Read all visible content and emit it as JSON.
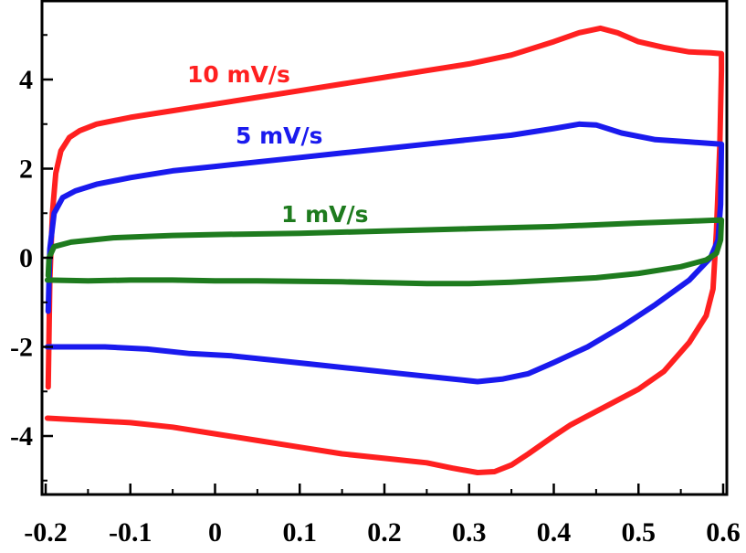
{
  "chart_data": {
    "type": "line",
    "title": "",
    "xlabel": "",
    "ylabel": "",
    "xlim": [
      -0.2,
      0.6
    ],
    "ylim": [
      -5.5,
      5.8
    ],
    "x_ticks": [
      "-0.2",
      "-0.1",
      "0",
      "0.1",
      "0.2",
      "0.3",
      "0.4",
      "0.5",
      "0.6"
    ],
    "x_tick_values": [
      -0.2,
      -0.1,
      0,
      0.1,
      0.2,
      0.3,
      0.4,
      0.5,
      0.6
    ],
    "y_ticks": [
      "4",
      "2",
      "0",
      "-2",
      "-4"
    ],
    "y_tick_values": [
      4,
      2,
      0,
      -2,
      -4
    ],
    "grid": false,
    "series": [
      {
        "name": "10 mV/s",
        "color": "#ff2020",
        "points": [
          [
            -0.197,
            -2.9
          ],
          [
            -0.195,
            -0.5
          ],
          [
            -0.192,
            1.0
          ],
          [
            -0.188,
            1.9
          ],
          [
            -0.182,
            2.4
          ],
          [
            -0.172,
            2.7
          ],
          [
            -0.16,
            2.85
          ],
          [
            -0.14,
            3.0
          ],
          [
            -0.1,
            3.15
          ],
          [
            -0.05,
            3.3
          ],
          [
            0.0,
            3.45
          ],
          [
            0.05,
            3.6
          ],
          [
            0.1,
            3.75
          ],
          [
            0.15,
            3.9
          ],
          [
            0.2,
            4.05
          ],
          [
            0.25,
            4.2
          ],
          [
            0.3,
            4.35
          ],
          [
            0.35,
            4.55
          ],
          [
            0.4,
            4.85
          ],
          [
            0.43,
            5.05
          ],
          [
            0.455,
            5.15
          ],
          [
            0.475,
            5.05
          ],
          [
            0.5,
            4.85
          ],
          [
            0.53,
            4.72
          ],
          [
            0.56,
            4.62
          ],
          [
            0.585,
            4.6
          ],
          [
            0.598,
            4.58
          ],
          [
            0.598,
            4.2
          ],
          [
            0.596,
            2.5
          ],
          [
            0.592,
            0.6
          ],
          [
            0.588,
            -0.7
          ],
          [
            0.58,
            -1.3
          ],
          [
            0.56,
            -1.9
          ],
          [
            0.53,
            -2.55
          ],
          [
            0.5,
            -2.95
          ],
          [
            0.46,
            -3.35
          ],
          [
            0.42,
            -3.75
          ],
          [
            0.4,
            -4.0
          ],
          [
            0.37,
            -4.4
          ],
          [
            0.35,
            -4.65
          ],
          [
            0.33,
            -4.8
          ],
          [
            0.31,
            -4.82
          ],
          [
            0.28,
            -4.72
          ],
          [
            0.25,
            -4.6
          ],
          [
            0.2,
            -4.5
          ],
          [
            0.15,
            -4.4
          ],
          [
            0.1,
            -4.25
          ],
          [
            0.05,
            -4.1
          ],
          [
            0.0,
            -3.95
          ],
          [
            -0.05,
            -3.8
          ],
          [
            -0.1,
            -3.7
          ],
          [
            -0.15,
            -3.65
          ],
          [
            -0.198,
            -3.6
          ]
        ]
      },
      {
        "name": "5 mV/s",
        "color": "#1a1aee",
        "points": [
          [
            -0.197,
            -1.2
          ],
          [
            -0.195,
            0.2
          ],
          [
            -0.19,
            1.0
          ],
          [
            -0.18,
            1.35
          ],
          [
            -0.165,
            1.5
          ],
          [
            -0.14,
            1.65
          ],
          [
            -0.1,
            1.8
          ],
          [
            -0.05,
            1.95
          ],
          [
            0.0,
            2.05
          ],
          [
            0.05,
            2.15
          ],
          [
            0.1,
            2.25
          ],
          [
            0.15,
            2.35
          ],
          [
            0.2,
            2.45
          ],
          [
            0.25,
            2.55
          ],
          [
            0.3,
            2.65
          ],
          [
            0.35,
            2.75
          ],
          [
            0.4,
            2.9
          ],
          [
            0.43,
            3.0
          ],
          [
            0.45,
            2.98
          ],
          [
            0.48,
            2.8
          ],
          [
            0.52,
            2.65
          ],
          [
            0.56,
            2.6
          ],
          [
            0.598,
            2.55
          ],
          [
            0.597,
            1.2
          ],
          [
            0.594,
            0.4
          ],
          [
            0.585,
            0.0
          ],
          [
            0.56,
            -0.5
          ],
          [
            0.52,
            -1.05
          ],
          [
            0.48,
            -1.55
          ],
          [
            0.44,
            -2.0
          ],
          [
            0.4,
            -2.35
          ],
          [
            0.37,
            -2.6
          ],
          [
            0.34,
            -2.72
          ],
          [
            0.31,
            -2.78
          ],
          [
            0.27,
            -2.7
          ],
          [
            0.22,
            -2.6
          ],
          [
            0.17,
            -2.5
          ],
          [
            0.12,
            -2.4
          ],
          [
            0.07,
            -2.3
          ],
          [
            0.02,
            -2.2
          ],
          [
            -0.03,
            -2.15
          ],
          [
            -0.08,
            -2.05
          ],
          [
            -0.13,
            -2.0
          ],
          [
            -0.198,
            -2.0
          ]
        ]
      },
      {
        "name": "1 mV/s",
        "color": "#1e7b1e",
        "points": [
          [
            -0.197,
            -0.4
          ],
          [
            -0.196,
            0.0
          ],
          [
            -0.19,
            0.25
          ],
          [
            -0.17,
            0.35
          ],
          [
            -0.12,
            0.45
          ],
          [
            -0.05,
            0.5
          ],
          [
            0.0,
            0.52
          ],
          [
            0.1,
            0.55
          ],
          [
            0.2,
            0.6
          ],
          [
            0.3,
            0.65
          ],
          [
            0.4,
            0.7
          ],
          [
            0.5,
            0.78
          ],
          [
            0.56,
            0.82
          ],
          [
            0.598,
            0.85
          ],
          [
            0.597,
            0.4
          ],
          [
            0.592,
            0.1
          ],
          [
            0.58,
            -0.05
          ],
          [
            0.55,
            -0.2
          ],
          [
            0.5,
            -0.35
          ],
          [
            0.45,
            -0.45
          ],
          [
            0.4,
            -0.5
          ],
          [
            0.35,
            -0.55
          ],
          [
            0.3,
            -0.58
          ],
          [
            0.25,
            -0.58
          ],
          [
            0.2,
            -0.56
          ],
          [
            0.15,
            -0.54
          ],
          [
            0.1,
            -0.53
          ],
          [
            0.05,
            -0.52
          ],
          [
            0.0,
            -0.52
          ],
          [
            -0.05,
            -0.5
          ],
          [
            -0.1,
            -0.5
          ],
          [
            -0.15,
            -0.52
          ],
          [
            -0.198,
            -0.5
          ]
        ]
      }
    ]
  }
}
